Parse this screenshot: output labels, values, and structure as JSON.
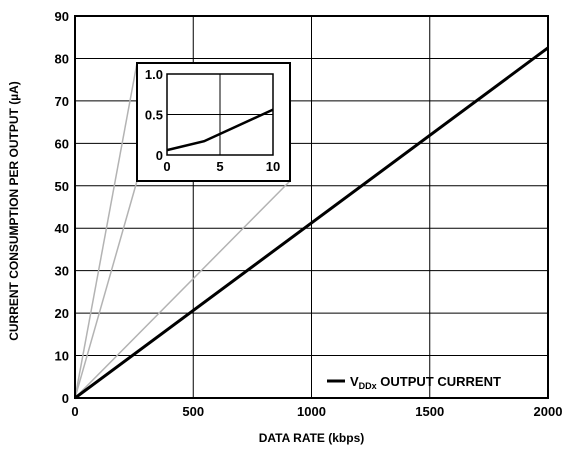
{
  "chart_data": {
    "type": "line",
    "xlabel": "DATA RATE (kbps)",
    "ylabel": "CURRENT CONSUMPTION PER OUTPUT (µA)",
    "xlim": [
      0,
      2000
    ],
    "ylim": [
      0,
      90
    ],
    "x_ticks": [
      "0",
      "500",
      "1000",
      "1500",
      "2000"
    ],
    "y_ticks": [
      "0",
      "10",
      "20",
      "30",
      "40",
      "50",
      "60",
      "70",
      "80",
      "90"
    ],
    "grid": true,
    "legend_position": "bottom-right",
    "series": [
      {
        "name": "VDDx OUTPUT CURRENT",
        "name_main": "V",
        "name_sub": "DDx",
        "name_rest": " OUTPUT CURRENT",
        "color": "#000000",
        "x": [
          0,
          2000
        ],
        "y": [
          0,
          82.5
        ]
      }
    ],
    "inset": {
      "xlim": [
        0,
        10
      ],
      "ylim": [
        0,
        1.0
      ],
      "x_ticks": [
        "0",
        "5",
        "10"
      ],
      "y_ticks": [
        "0",
        "0.5",
        "1.0"
      ],
      "series": [
        {
          "x": [
            0,
            3.5,
            10
          ],
          "y": [
            0.06,
            0.17,
            0.56
          ]
        }
      ]
    }
  }
}
